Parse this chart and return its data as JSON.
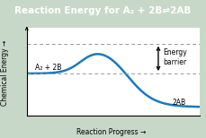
{
  "title": "Reaction Energy for A₂ + 2B⇌2AB",
  "title_bg": "#22aa22",
  "title_color": "white",
  "xlabel": "Reaction Progress →",
  "ylabel": "Chemical Energy →",
  "outer_bg": "#c8d8c8",
  "inner_bg": "white",
  "curve_color": "#1a7abf",
  "curve_linewidth": 1.8,
  "reactant_label": "A₂ + 2B",
  "product_label": "2AB",
  "energy_barrier_label": "Energy\nbarrier",
  "reactant_energy": 0.48,
  "peak_energy": 0.82,
  "product_energy": 0.1,
  "dashed_color": "#999999",
  "arrow_color": "black",
  "label_fontsize": 5.5,
  "axis_label_fontsize": 5.5,
  "title_fontsize": 7.5
}
